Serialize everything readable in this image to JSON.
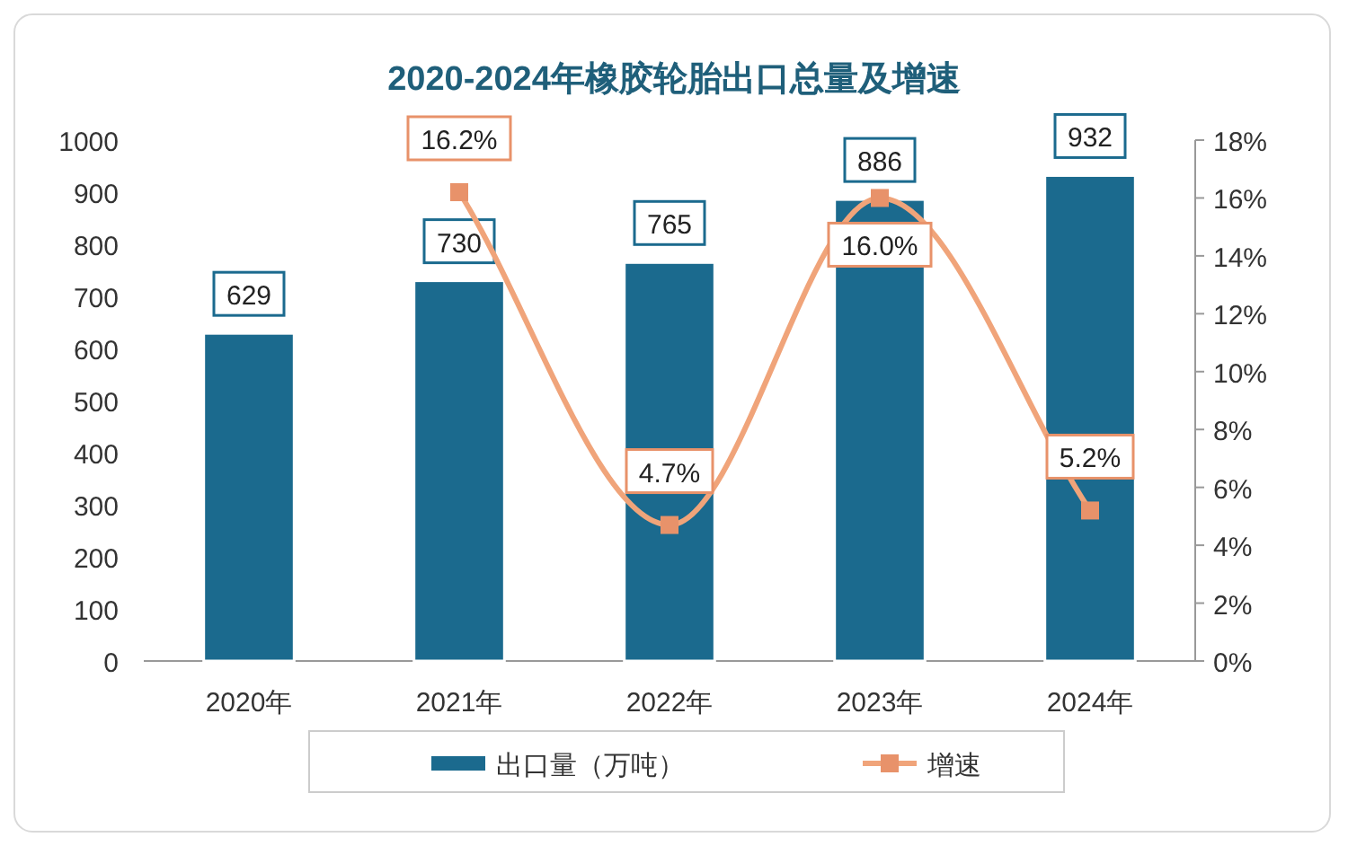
{
  "chart_data": {
    "type": "bar",
    "title": "2020-2024年橡胶轮胎出口总量及增速",
    "categories": [
      "2020年",
      "2021年",
      "2022年",
      "2023年",
      "2024年"
    ],
    "series": [
      {
        "name": "出口量（万吨）",
        "color": "#1b6a8e",
        "values": [
          629,
          730,
          765,
          886,
          932
        ],
        "value_labels": [
          "629",
          "730",
          "765",
          "886",
          "932"
        ]
      },
      {
        "name": "增速",
        "type": "line",
        "axis": "y2",
        "color": "#f0a47a",
        "marker": "square",
        "values": [
          null,
          16.2,
          4.7,
          16.0,
          5.2
        ],
        "value_labels": [
          null,
          "16.2%",
          "4.7%",
          "16.0%",
          "5.2%"
        ]
      }
    ],
    "ylim": [
      0,
      1000
    ],
    "yticks": [
      0,
      100,
      200,
      300,
      400,
      500,
      600,
      700,
      800,
      900,
      1000
    ],
    "y2lim": [
      0,
      18
    ],
    "y2ticks": [
      {
        "value": 0,
        "label": "0%"
      },
      {
        "value": 2,
        "label": "2%"
      },
      {
        "value": 4,
        "label": "4%"
      },
      {
        "value": 6,
        "label": "6%"
      },
      {
        "value": 8,
        "label": "8%"
      },
      {
        "value": 10,
        "label": "10%"
      },
      {
        "value": 12,
        "label": "12%"
      },
      {
        "value": 14,
        "label": "14%"
      },
      {
        "value": 16,
        "label": "16%"
      },
      {
        "value": 18,
        "label": "18%"
      }
    ],
    "grid": false,
    "legend": "bottom"
  }
}
